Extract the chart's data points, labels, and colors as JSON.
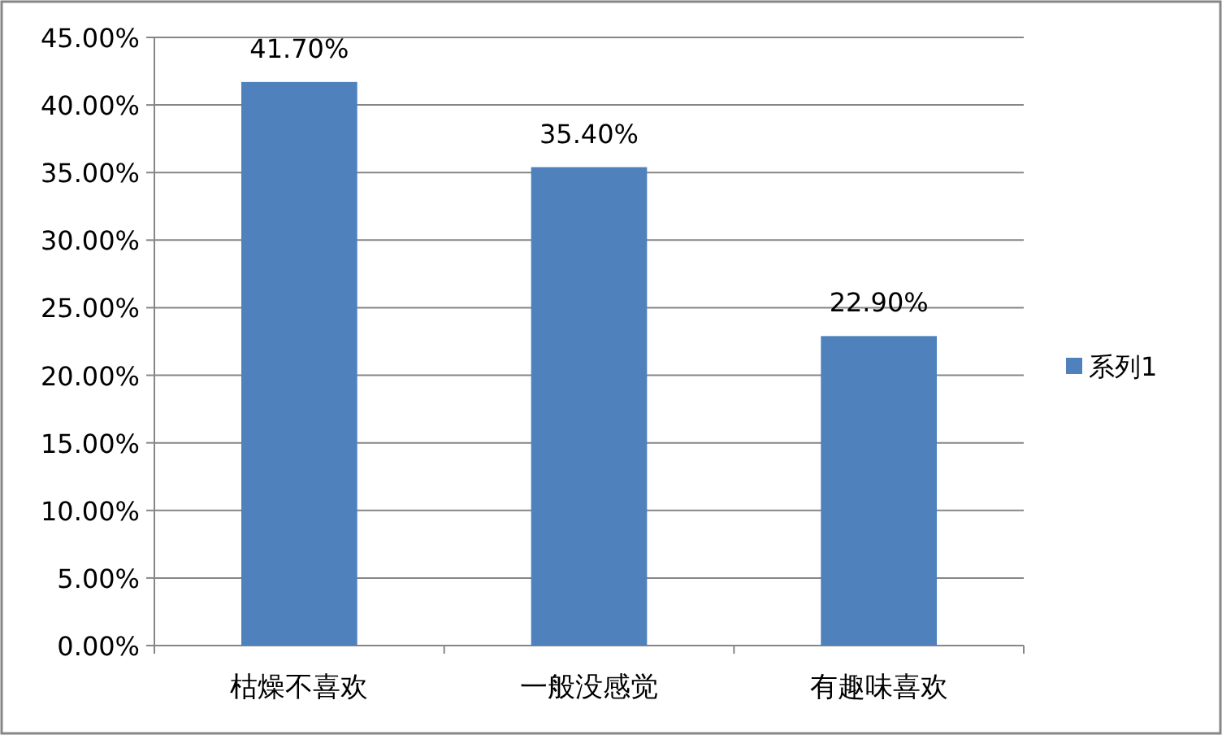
{
  "chart_data": {
    "type": "bar",
    "categories": [
      "枯燥不喜欢",
      "一般没感觉",
      "有趣味喜欢"
    ],
    "series": [
      {
        "name": "系列1",
        "color": "#4f81bd",
        "values": [
          41.7,
          35.4,
          22.9
        ],
        "value_labels": [
          "41.70%",
          "35.40%",
          "22.90%"
        ]
      }
    ],
    "ylim": [
      0,
      45
    ],
    "yticks": [
      {
        "value": 0,
        "label": "0.00%"
      },
      {
        "value": 5,
        "label": "5.00%"
      },
      {
        "value": 10,
        "label": "10.00%"
      },
      {
        "value": 15,
        "label": "15.00%"
      },
      {
        "value": 20,
        "label": "20.00%"
      },
      {
        "value": 25,
        "label": "25.00%"
      },
      {
        "value": 30,
        "label": "30.00%"
      },
      {
        "value": 35,
        "label": "35.00%"
      },
      {
        "value": 40,
        "label": "40.00%"
      },
      {
        "value": 45,
        "label": "45.00%"
      }
    ],
    "grid": "y",
    "legend": "right"
  }
}
